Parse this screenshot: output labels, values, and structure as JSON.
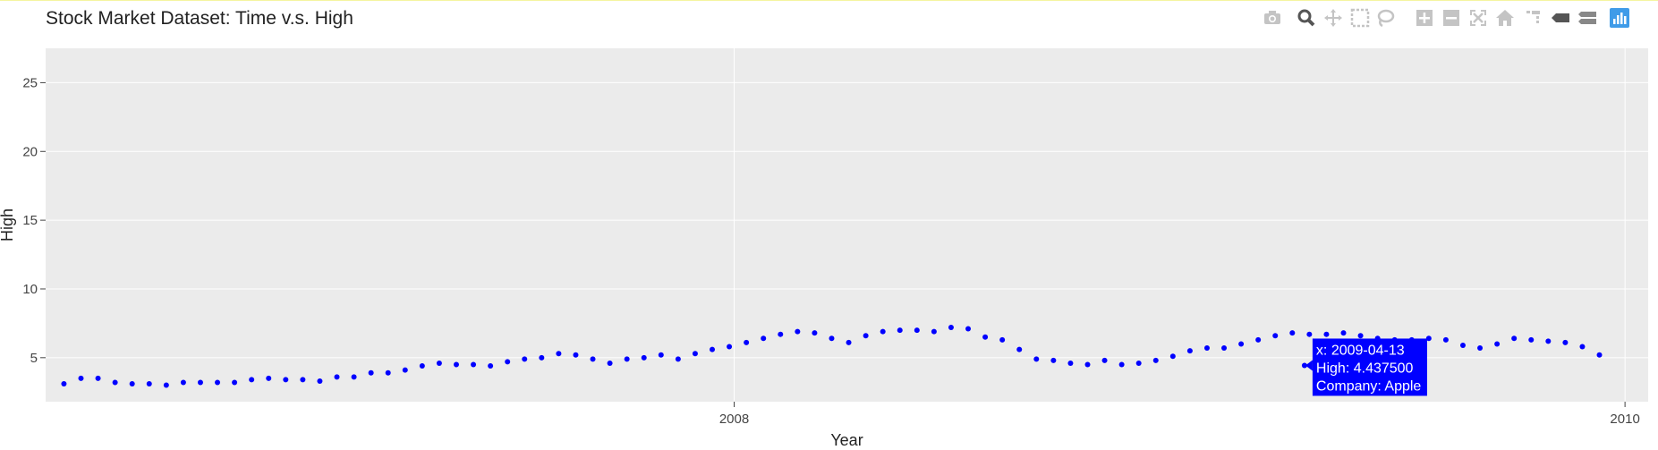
{
  "title": "Stock Market Dataset: Time v.s. High",
  "modebar": {
    "icons": [
      "camera-icon",
      "zoom-icon",
      "pan-icon",
      "box-select-icon",
      "lasso-icon",
      "zoom-in-icon",
      "zoom-out-icon",
      "autoscale-icon",
      "reset-axes-icon",
      "spike-lines-icon",
      "hover-closest-icon",
      "hover-compare-icon",
      "plotly-logo-icon"
    ]
  },
  "colors": {
    "marker": "#0000ff",
    "plot_bg": "#ebebeb",
    "grid": "#ffffff",
    "tooltip_bg": "#0000ff"
  },
  "chart_data": {
    "type": "scatter",
    "xlabel": "Year",
    "ylabel": "High",
    "xlim": [
      "2006-06-15",
      "2010-01-20"
    ],
    "ylim": [
      1.8,
      27.5
    ],
    "x_ticks": [
      "2008",
      "2010"
    ],
    "y_ticks": [
      5,
      10,
      15,
      20,
      25
    ],
    "grid": true,
    "series": [
      {
        "name": "Apple",
        "points": [
          [
            "2006-06-30",
            3.1
          ],
          [
            "2006-07-14",
            3.5
          ],
          [
            "2006-07-28",
            3.5
          ],
          [
            "2006-08-11",
            3.2
          ],
          [
            "2006-08-25",
            3.1
          ],
          [
            "2006-09-08",
            3.1
          ],
          [
            "2006-09-22",
            3.0
          ],
          [
            "2006-10-06",
            3.2
          ],
          [
            "2006-10-20",
            3.2
          ],
          [
            "2006-11-03",
            3.2
          ],
          [
            "2006-11-17",
            3.2
          ],
          [
            "2006-12-01",
            3.4
          ],
          [
            "2006-12-15",
            3.5
          ],
          [
            "2006-12-29",
            3.4
          ],
          [
            "2007-01-12",
            3.4
          ],
          [
            "2007-01-26",
            3.3
          ],
          [
            "2007-02-09",
            3.6
          ],
          [
            "2007-02-23",
            3.6
          ],
          [
            "2007-03-09",
            3.9
          ],
          [
            "2007-03-23",
            3.9
          ],
          [
            "2007-04-06",
            4.1
          ],
          [
            "2007-04-20",
            4.4
          ],
          [
            "2007-05-04",
            4.6
          ],
          [
            "2007-05-18",
            4.5
          ],
          [
            "2007-06-01",
            4.5
          ],
          [
            "2007-06-15",
            4.4
          ],
          [
            "2007-06-29",
            4.7
          ],
          [
            "2007-07-13",
            4.9
          ],
          [
            "2007-07-27",
            5.0
          ],
          [
            "2007-08-10",
            5.3
          ],
          [
            "2007-08-24",
            5.2
          ],
          [
            "2007-09-07",
            4.9
          ],
          [
            "2007-09-21",
            4.6
          ],
          [
            "2007-10-05",
            4.9
          ],
          [
            "2007-10-19",
            5.0
          ],
          [
            "2007-11-02",
            5.2
          ],
          [
            "2007-11-16",
            4.9
          ],
          [
            "2007-11-30",
            5.3
          ],
          [
            "2007-12-14",
            5.6
          ],
          [
            "2007-12-28",
            5.8
          ],
          [
            "2008-01-11",
            6.1
          ],
          [
            "2008-01-25",
            6.4
          ],
          [
            "2008-02-08",
            6.7
          ],
          [
            "2008-02-22",
            6.9
          ],
          [
            "2008-03-07",
            6.8
          ],
          [
            "2008-03-21",
            6.4
          ],
          [
            "2008-04-04",
            6.1
          ],
          [
            "2008-04-18",
            6.6
          ],
          [
            "2008-05-02",
            6.9
          ],
          [
            "2008-05-16",
            7.0
          ],
          [
            "2008-05-30",
            7.0
          ],
          [
            "2008-06-13",
            6.9
          ],
          [
            "2008-06-27",
            7.2
          ],
          [
            "2008-07-11",
            7.1
          ],
          [
            "2008-07-25",
            6.5
          ],
          [
            "2008-08-08",
            6.3
          ],
          [
            "2008-08-22",
            5.6
          ],
          [
            "2008-09-05",
            4.9
          ],
          [
            "2008-09-19",
            4.8
          ],
          [
            "2008-10-03",
            4.6
          ],
          [
            "2008-10-17",
            4.5
          ],
          [
            "2008-10-31",
            4.8
          ],
          [
            "2008-11-14",
            4.5
          ],
          [
            "2008-11-28",
            4.6
          ],
          [
            "2008-12-12",
            4.8
          ],
          [
            "2008-12-26",
            5.1
          ],
          [
            "2009-01-09",
            5.5
          ],
          [
            "2009-01-23",
            5.7
          ],
          [
            "2009-02-06",
            5.7
          ],
          [
            "2009-02-20",
            6.0
          ],
          [
            "2009-03-06",
            6.3
          ],
          [
            "2009-03-20",
            6.6
          ],
          [
            "2009-04-03",
            6.8
          ],
          [
            "2009-04-17",
            6.7
          ],
          [
            "2009-05-01",
            6.7
          ],
          [
            "2009-05-15",
            6.8
          ],
          [
            "2009-05-29",
            6.6
          ],
          [
            "2009-06-12",
            6.4
          ],
          [
            "2009-06-26",
            6.3
          ],
          [
            "2009-07-10",
            6.3
          ],
          [
            "2009-07-24",
            6.4
          ],
          [
            "2009-08-07",
            6.3
          ],
          [
            "2009-08-21",
            5.9
          ],
          [
            "2009-09-04",
            5.7
          ],
          [
            "2009-09-18",
            6.0
          ],
          [
            "2009-10-02",
            6.4
          ],
          [
            "2009-10-16",
            6.3
          ],
          [
            "2009-10-30",
            6.2
          ],
          [
            "2009-11-13",
            6.1
          ],
          [
            "2009-11-27",
            5.8
          ],
          [
            "2009-12-11",
            5.2
          ]
        ]
      }
    ],
    "hover": {
      "x": "2009-04-13",
      "high": "4.437500",
      "company": "Apple"
    }
  },
  "tooltip_lines": [
    "x: 2009-04-13",
    "High:  4.437500",
    "Company: Apple"
  ]
}
